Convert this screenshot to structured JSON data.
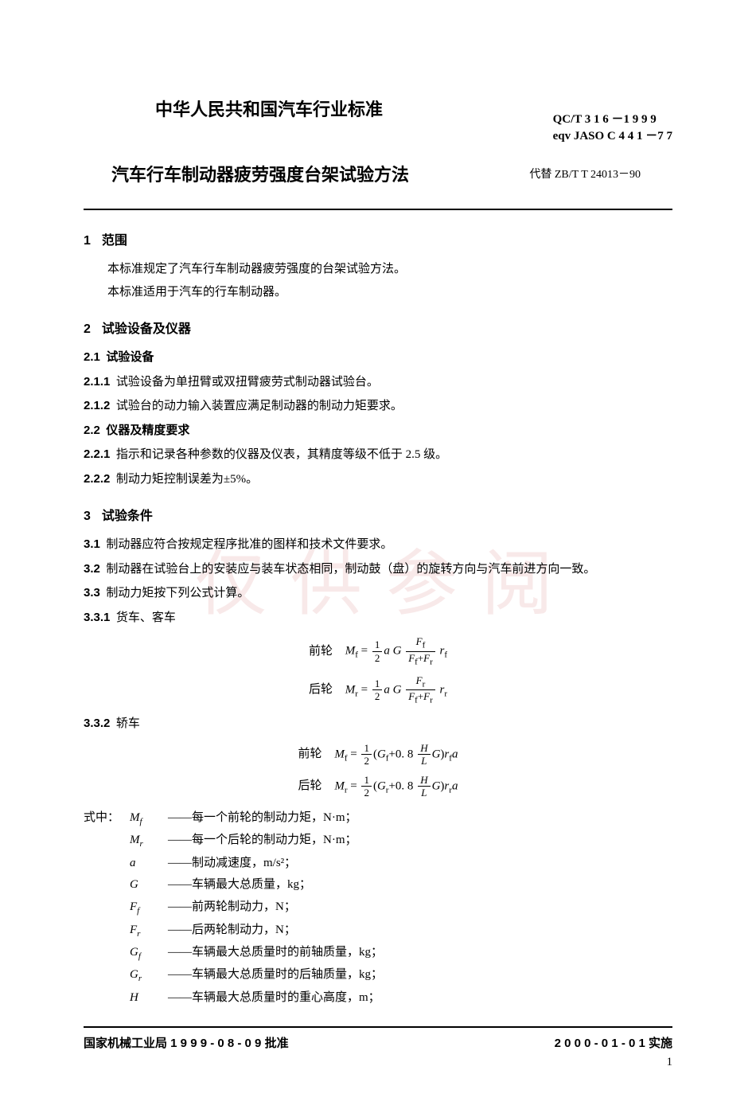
{
  "header": {
    "main_title": "中华人民共和国汽车行业标准",
    "std_code1": "QC/T  3 1 6 －1 9 9 9",
    "std_code2": "eqv JASO C 4 4 1 －7 7",
    "subtitle": "汽车行车制动器疲劳强度台架试验方法",
    "replaces": "代替 ZB/T T 24013－90"
  },
  "sections": {
    "s1": {
      "num": "1",
      "title": "范围",
      "p1": "本标准规定了汽车行车制动器疲劳强度的台架试验方法。",
      "p2": "本标准适用于汽车的行车制动器。"
    },
    "s2": {
      "num": "2",
      "title": "试验设备及仪器",
      "c21_num": "2.1",
      "c21_title": "试验设备",
      "c211_num": "2.1.1",
      "c211": "试验设备为单扭臂或双扭臂疲劳式制动器试验台。",
      "c212_num": "2.1.2",
      "c212": "试验台的动力输入装置应满足制动器的制动力矩要求。",
      "c22_num": "2.2",
      "c22_title": "仪器及精度要求",
      "c221_num": "2.2.1",
      "c221": "指示和记录各种参数的仪器及仪表，其精度等级不低于 2.5 级。",
      "c222_num": "2.2.2",
      "c222": "制动力矩控制误差为±5%。"
    },
    "s3": {
      "num": "3",
      "title": "试验条件",
      "c31_num": "3.1",
      "c31": "制动器应符合按规定程序批准的图样和技术文件要求。",
      "c32_num": "3.2",
      "c32": "制动器在试验台上的安装应与装车状态相同，制动鼓（盘）的旋转方向与汽车前进方向一致。",
      "c33_num": "3.3",
      "c33": "制动力矩按下列公式计算。",
      "c331_num": "3.3.1",
      "c331": "货车、客车",
      "c332_num": "3.3.2",
      "c332": "轿车"
    },
    "formulas": {
      "front_label": "前轮",
      "rear_label": "后轮"
    },
    "where_label": "式中：",
    "where": {
      "Mf": "——每一个前轮的制动力矩，N·m；",
      "Mr": "——每一个后轮的制动力矩，N·m；",
      "a": "——制动减速度，m/s²；",
      "G": "——车辆最大总质量，kg；",
      "Ff": "——前两轮制动力，N；",
      "Fr": "——后两轮制动力，N；",
      "Gf": "——车辆最大总质量时的前轴质量，kg；",
      "Gr": "——车辆最大总质量时的后轴质量，kg；",
      "H": "——车辆最大总质量时的重心高度，m；"
    }
  },
  "footer": {
    "left": "国家机械工业局 1 9 9 9 - 0 8 - 0 9 批准",
    "right": "2 0 0 0 - 0 1 - 0 1 实施",
    "page": "1"
  },
  "watermark": "仅供参阅"
}
